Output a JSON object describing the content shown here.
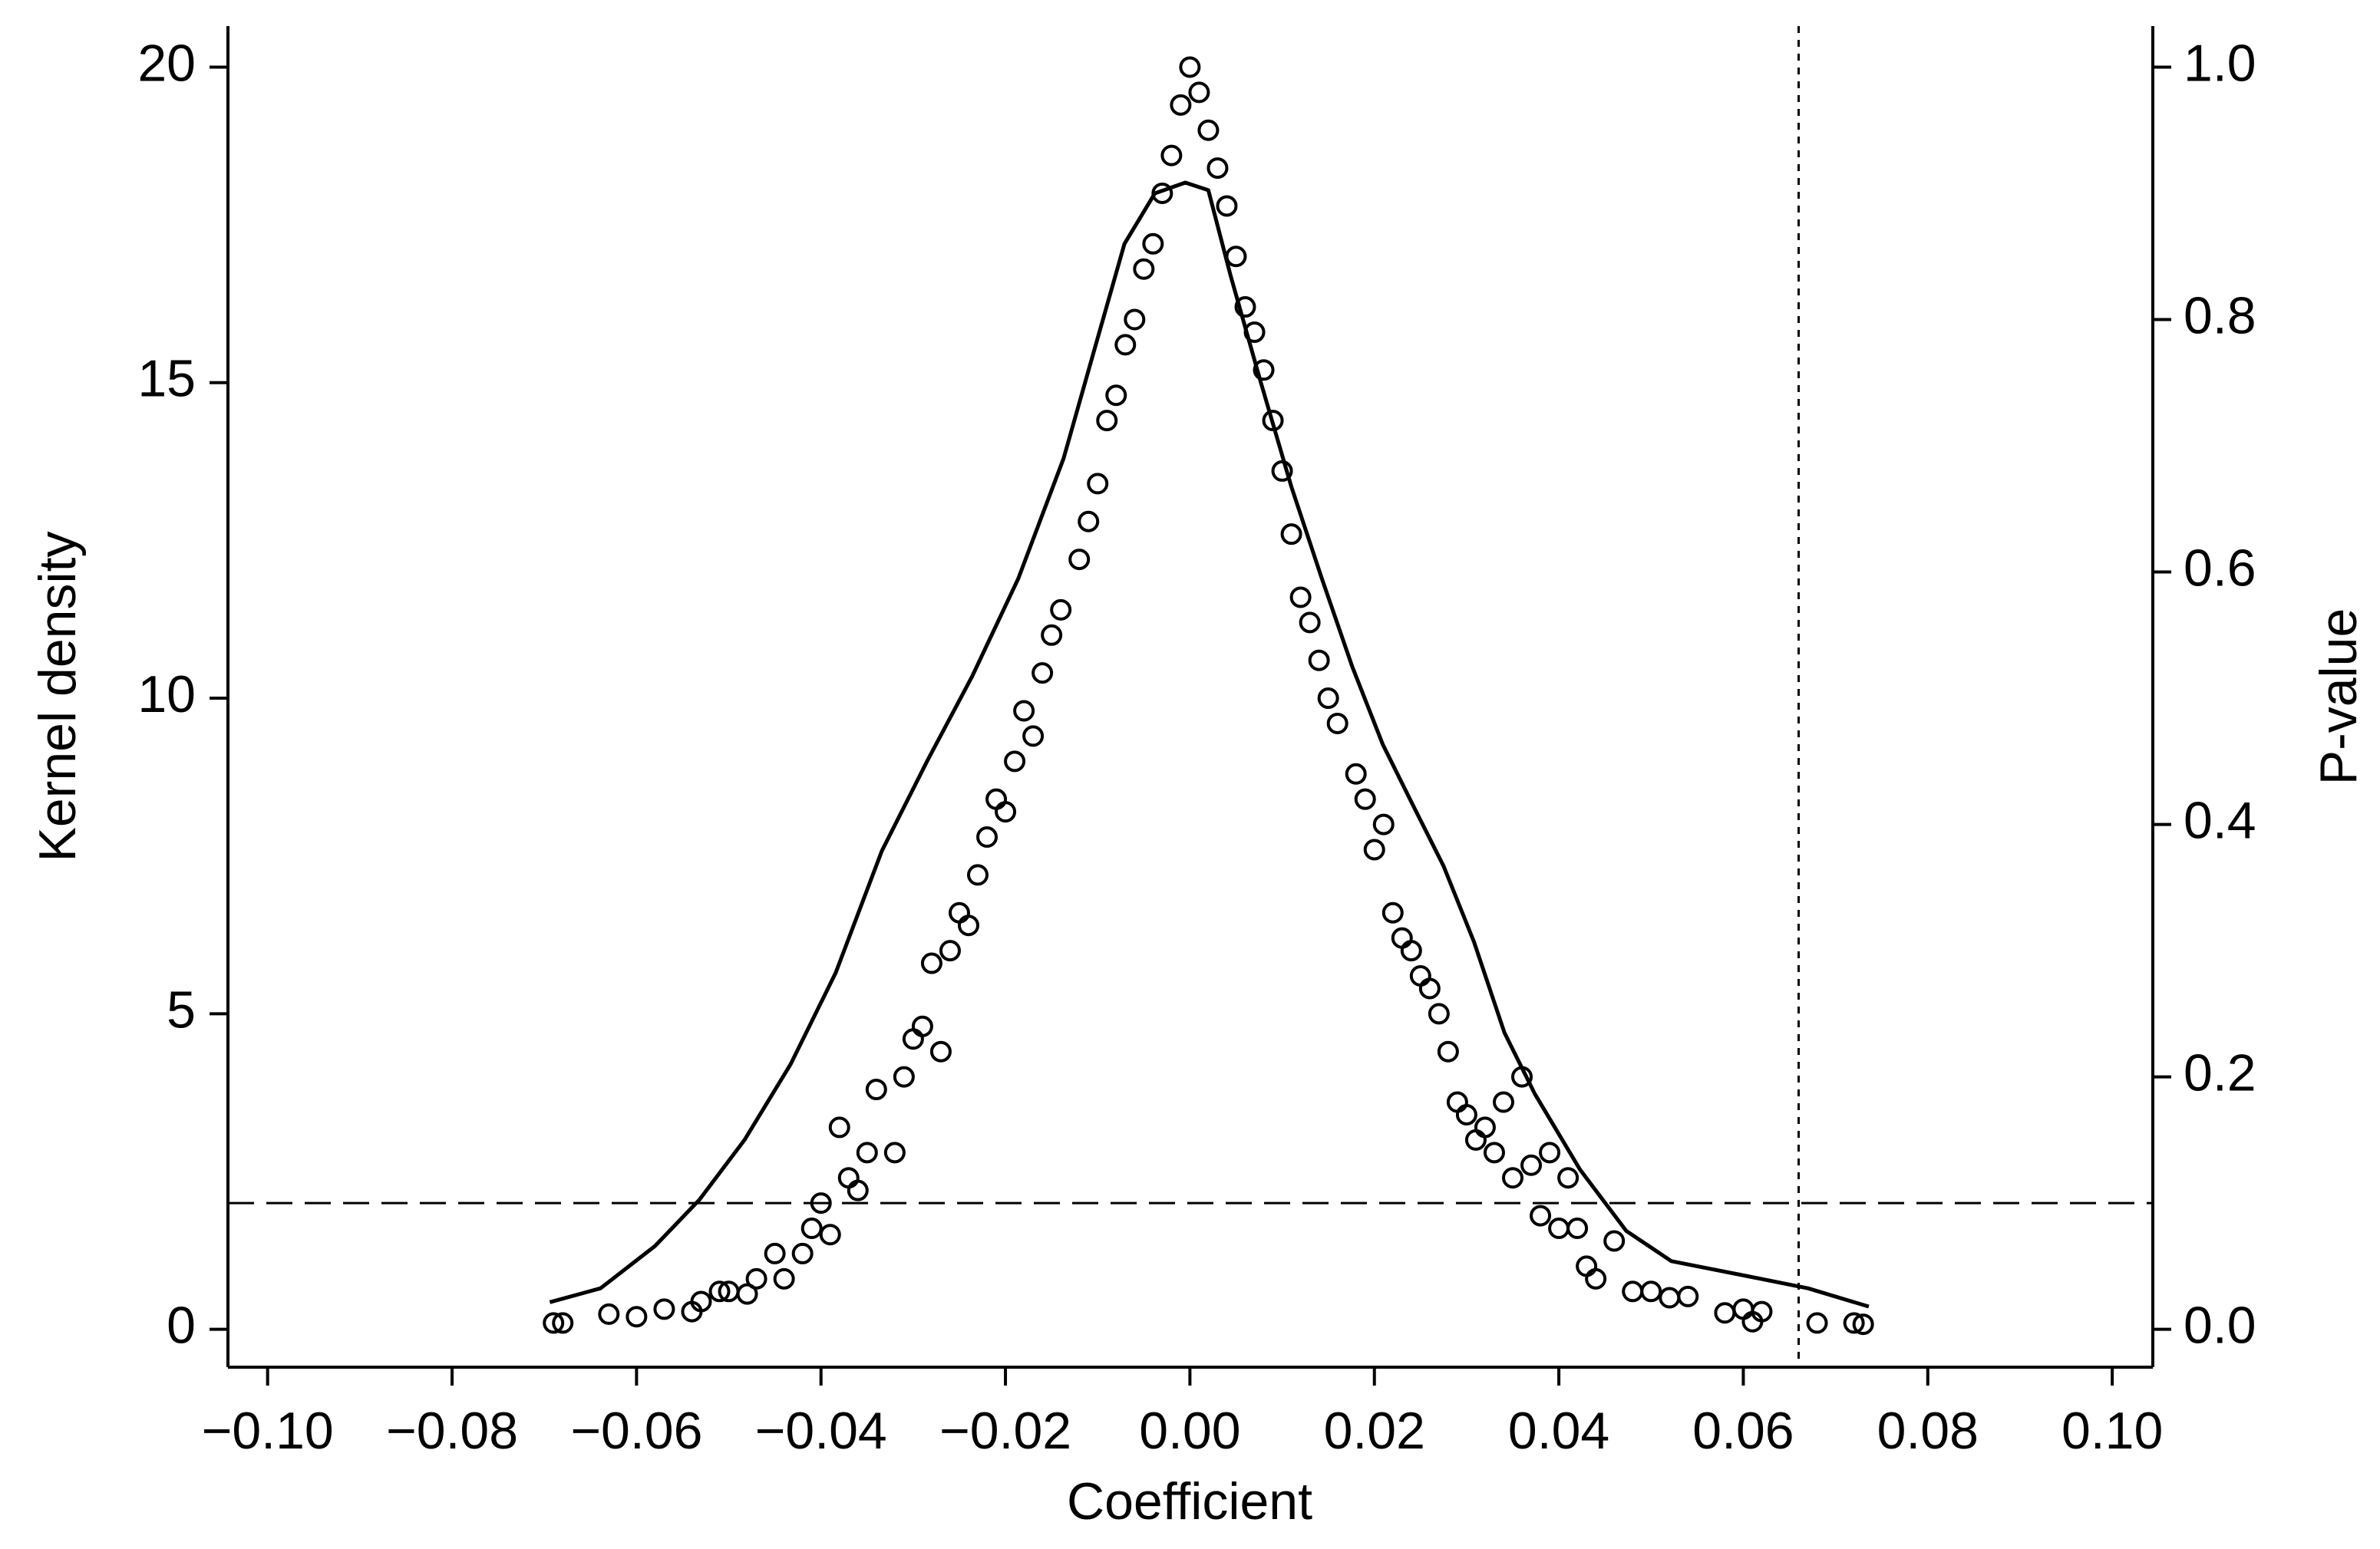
{
  "chart_data": {
    "type": "scatter",
    "xlabel": "Coefficient",
    "ylabel": "Kernel density",
    "y2label": "P-value",
    "xlim": [
      -0.1043,
      0.1044
    ],
    "ylim": [
      -0.6,
      20.65
    ],
    "y2lim": [
      -0.03,
      1.0325
    ],
    "xticks": [
      {
        "value": -0.1,
        "label": "−0.10"
      },
      {
        "value": -0.08,
        "label": "−0.08"
      },
      {
        "value": -0.06,
        "label": "−0.06"
      },
      {
        "value": -0.04,
        "label": "−0.04"
      },
      {
        "value": -0.02,
        "label": "−0.02"
      },
      {
        "value": 0,
        "label": "0.00"
      },
      0.02,
      0.04,
      0.06,
      0.08,
      {
        "value": 0.1,
        "label": "0.10"
      }
    ],
    "yticks": [
      0,
      5,
      10,
      15,
      20
    ],
    "y2ticks": [
      {
        "value": 0,
        "label": "0.0"
      },
      0.2,
      0.4,
      0.6,
      0.8,
      {
        "value": 1,
        "label": "1.0"
      }
    ],
    "reference_lines": [
      {
        "axis": "y2",
        "value": 0.1,
        "style": "dashed"
      },
      {
        "axis": "x",
        "value": 0.066,
        "style": "dotted"
      }
    ],
    "series": [
      {
        "type": "line",
        "color": "#000000",
        "x": [
          -0.0694,
          -0.0639,
          -0.058,
          -0.0532,
          -0.0483,
          -0.0433,
          -0.0384,
          -0.0334,
          -0.0285,
          -0.0236,
          -0.0186,
          -0.0137,
          -0.0104,
          -0.0071,
          -0.0038,
          -0.0005,
          0.002,
          0.0044,
          0.0077,
          0.011,
          0.0143,
          0.0176,
          0.0209,
          0.0242,
          0.0275,
          0.0308,
          0.0341,
          0.0374,
          0.0423,
          0.0473,
          0.0522,
          0.0605,
          0.067,
          0.0736
        ],
        "values": [
          0.43,
          0.65,
          1.32,
          2.05,
          3.0,
          4.2,
          5.65,
          7.58,
          9.0,
          10.35,
          11.9,
          13.8,
          15.5,
          17.2,
          18.0,
          18.17,
          18.05,
          16.7,
          15.0,
          13.35,
          11.9,
          10.5,
          9.27,
          8.3,
          7.34,
          6.14,
          4.7,
          3.73,
          2.53,
          1.56,
          1.08,
          0.84,
          0.65,
          0.36
        ]
      },
      {
        "type": "scatter",
        "axis": "y2",
        "color": "#000000",
        "x": [
          -0.069,
          -0.068,
          -0.063,
          -0.06,
          -0.057,
          -0.054,
          -0.053,
          -0.051,
          -0.05,
          -0.048,
          -0.047,
          -0.045,
          -0.044,
          -0.042,
          -0.041,
          -0.04,
          -0.039,
          -0.038,
          -0.037,
          -0.036,
          -0.035,
          -0.034,
          -0.032,
          -0.031,
          -0.03,
          -0.029,
          -0.028,
          -0.027,
          -0.026,
          -0.025,
          -0.024,
          -0.023,
          -0.022,
          -0.021,
          -0.02,
          -0.019,
          -0.018,
          -0.017,
          -0.016,
          -0.015,
          -0.014,
          -0.012,
          -0.011,
          -0.01,
          -0.009,
          -0.008,
          -0.007,
          -0.006,
          -0.005,
          -0.004,
          -0.003,
          -0.002,
          -0.001,
          0,
          0.001,
          0.002,
          0.003,
          0.004,
          0.005,
          0.006,
          0.007,
          0.008,
          0.009,
          0.01,
          0.011,
          0.012,
          0.013,
          0.014,
          0.015,
          0.016,
          0.018,
          0.019,
          0.02,
          0.021,
          0.022,
          0.023,
          0.024,
          0.025,
          0.026,
          0.027,
          0.028,
          0.029,
          0.03,
          0.031,
          0.032,
          0.033,
          0.034,
          0.035,
          0.036,
          0.037,
          0.038,
          0.039,
          0.04,
          0.041,
          0.042,
          0.043,
          0.044,
          0.046,
          0.048,
          0.05,
          0.052,
          0.054,
          0.058,
          0.06,
          0.061,
          0.062,
          0.068,
          0.072,
          0.073
        ],
        "values": [
          0.005,
          0.005,
          0.012,
          0.01,
          0.016,
          0.014,
          0.022,
          0.03,
          0.03,
          0.028,
          0.04,
          0.06,
          0.04,
          0.06,
          0.08,
          0.1,
          0.075,
          0.16,
          0.12,
          0.11,
          0.14,
          0.19,
          0.14,
          0.2,
          0.23,
          0.24,
          0.29,
          0.22,
          0.3,
          0.33,
          0.32,
          0.36,
          0.39,
          0.42,
          0.41,
          0.45,
          0.49,
          0.47,
          0.52,
          0.55,
          0.57,
          0.61,
          0.64,
          0.67,
          0.72,
          0.74,
          0.78,
          0.8,
          0.84,
          0.86,
          0.9,
          0.93,
          0.97,
          1.0,
          0.98,
          0.95,
          0.92,
          0.89,
          0.85,
          0.81,
          0.79,
          0.76,
          0.72,
          0.68,
          0.63,
          0.58,
          0.56,
          0.53,
          0.5,
          0.48,
          0.44,
          0.42,
          0.38,
          0.4,
          0.33,
          0.31,
          0.3,
          0.28,
          0.27,
          0.25,
          0.22,
          0.18,
          0.17,
          0.15,
          0.16,
          0.14,
          0.18,
          0.12,
          0.2,
          0.13,
          0.09,
          0.14,
          0.08,
          0.12,
          0.08,
          0.05,
          0.04,
          0.07,
          0.03,
          0.03,
          0.025,
          0.026,
          0.013,
          0.016,
          0.006,
          0.014,
          0.005,
          0.005,
          0.004
        ]
      }
    ]
  }
}
